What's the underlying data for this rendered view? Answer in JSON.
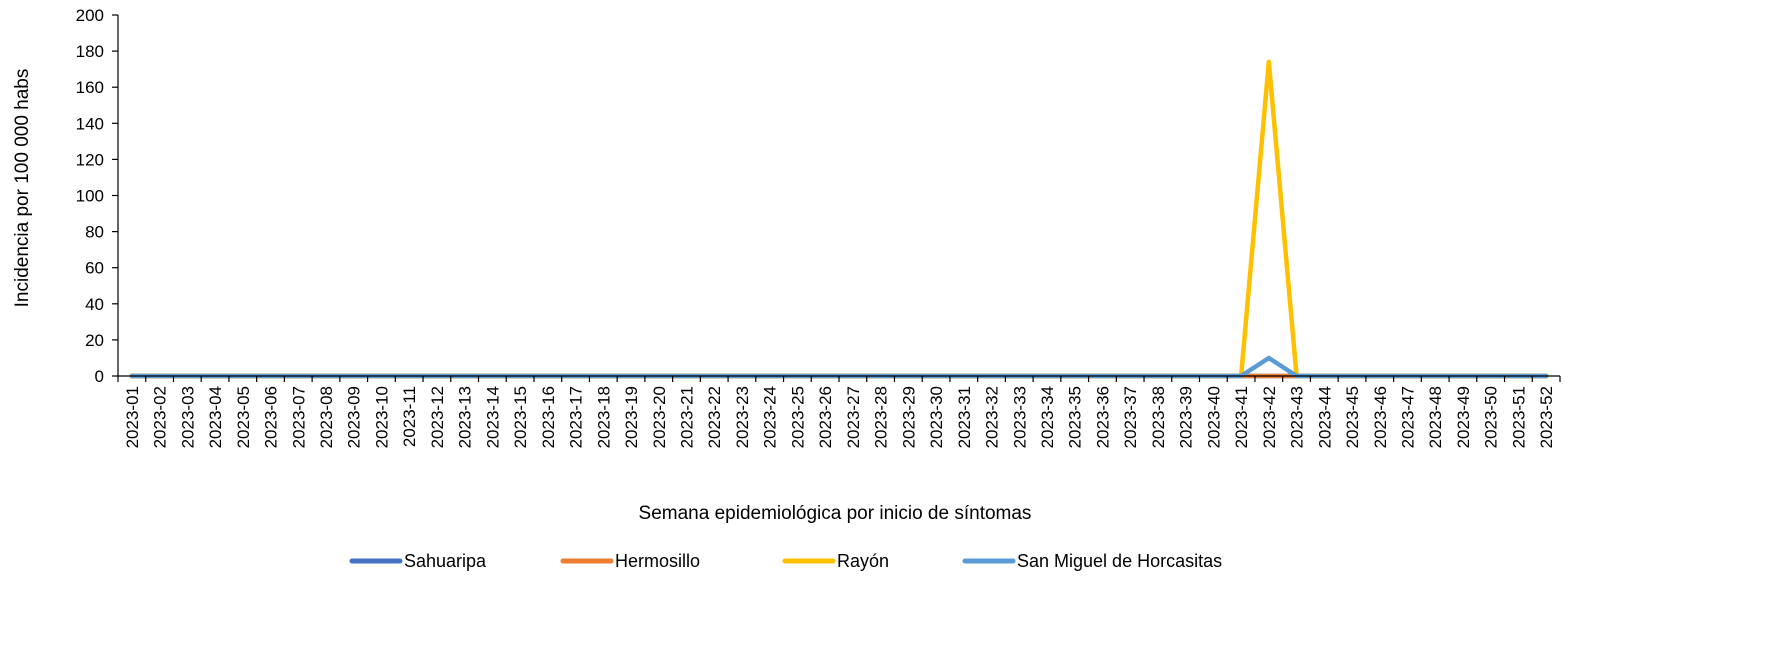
{
  "chart_data": {
    "type": "line",
    "title": "",
    "xlabel": "Semana epidemiológica por inicio de síntomas",
    "ylabel": "Incidencia por 100 000 habs",
    "ylim": [
      0,
      200
    ],
    "yticks": [
      0,
      20,
      40,
      60,
      80,
      100,
      120,
      140,
      160,
      180,
      200
    ],
    "grid": false,
    "legend_position": "bottom",
    "categories": [
      "2023-01",
      "2023-02",
      "2023-03",
      "2023-04",
      "2023-05",
      "2023-06",
      "2023-07",
      "2023-08",
      "2023-09",
      "2023-10",
      "2023-11",
      "2023-12",
      "2023-13",
      "2023-14",
      "2023-15",
      "2023-16",
      "2023-17",
      "2023-18",
      "2023-19",
      "2023-20",
      "2023-21",
      "2023-22",
      "2023-23",
      "2023-24",
      "2023-25",
      "2023-26",
      "2023-27",
      "2023-28",
      "2023-29",
      "2023-30",
      "2023-31",
      "2023-32",
      "2023-33",
      "2023-34",
      "2023-35",
      "2023-36",
      "2023-37",
      "2023-38",
      "2023-39",
      "2023-40",
      "2023-41",
      "2023-42",
      "2023-43",
      "2023-44",
      "2023-45",
      "2023-46",
      "2023-47",
      "2023-48",
      "2023-49",
      "2023-50",
      "2023-51",
      "2023-52"
    ],
    "series": [
      {
        "name": "Sahuaripa",
        "color": "#4472C4",
        "values": [
          0,
          0,
          0,
          0,
          0,
          0,
          0,
          0,
          0,
          0,
          0,
          0,
          0,
          0,
          0,
          0,
          0,
          0,
          0,
          0,
          0,
          0,
          0,
          0,
          0,
          0,
          0,
          0,
          0,
          0,
          0,
          0,
          0,
          0,
          0,
          0,
          0,
          0,
          0,
          0,
          0,
          0,
          0,
          0,
          0,
          0,
          0,
          0,
          0,
          0,
          0,
          0
        ]
      },
      {
        "name": "Hermosillo",
        "color": "#ED7D31",
        "values": [
          0,
          0,
          0,
          0,
          0,
          0,
          0,
          0,
          0,
          0,
          0,
          0,
          0,
          0,
          0,
          0,
          0,
          0,
          0,
          0,
          0,
          0,
          0,
          0,
          0,
          0,
          0,
          0,
          0,
          0,
          0,
          0,
          0,
          0,
          0,
          0,
          0,
          0,
          0,
          0,
          0,
          0,
          0,
          0,
          0,
          0,
          0,
          0,
          0,
          0,
          0,
          0
        ]
      },
      {
        "name": "Rayón",
        "color": "#FFC000",
        "values": [
          0,
          0,
          0,
          0,
          0,
          0,
          0,
          0,
          0,
          0,
          0,
          0,
          0,
          0,
          0,
          0,
          0,
          0,
          0,
          0,
          0,
          0,
          0,
          0,
          0,
          0,
          0,
          0,
          0,
          0,
          0,
          0,
          0,
          0,
          0,
          0,
          0,
          0,
          0,
          0,
          0,
          174,
          0,
          0,
          0,
          0,
          0,
          0,
          0,
          0,
          0,
          0
        ]
      },
      {
        "name": "San Miguel de Horcasitas",
        "color": "#5B9BD5",
        "values": [
          0,
          0,
          0,
          0,
          0,
          0,
          0,
          0,
          0,
          0,
          0,
          0,
          0,
          0,
          0,
          0,
          0,
          0,
          0,
          0,
          0,
          0,
          0,
          0,
          0,
          0,
          0,
          0,
          0,
          0,
          0,
          0,
          0,
          0,
          0,
          0,
          0,
          0,
          0,
          0,
          0,
          10,
          0,
          0,
          0,
          0,
          0,
          0,
          0,
          0,
          0,
          0
        ]
      }
    ]
  }
}
